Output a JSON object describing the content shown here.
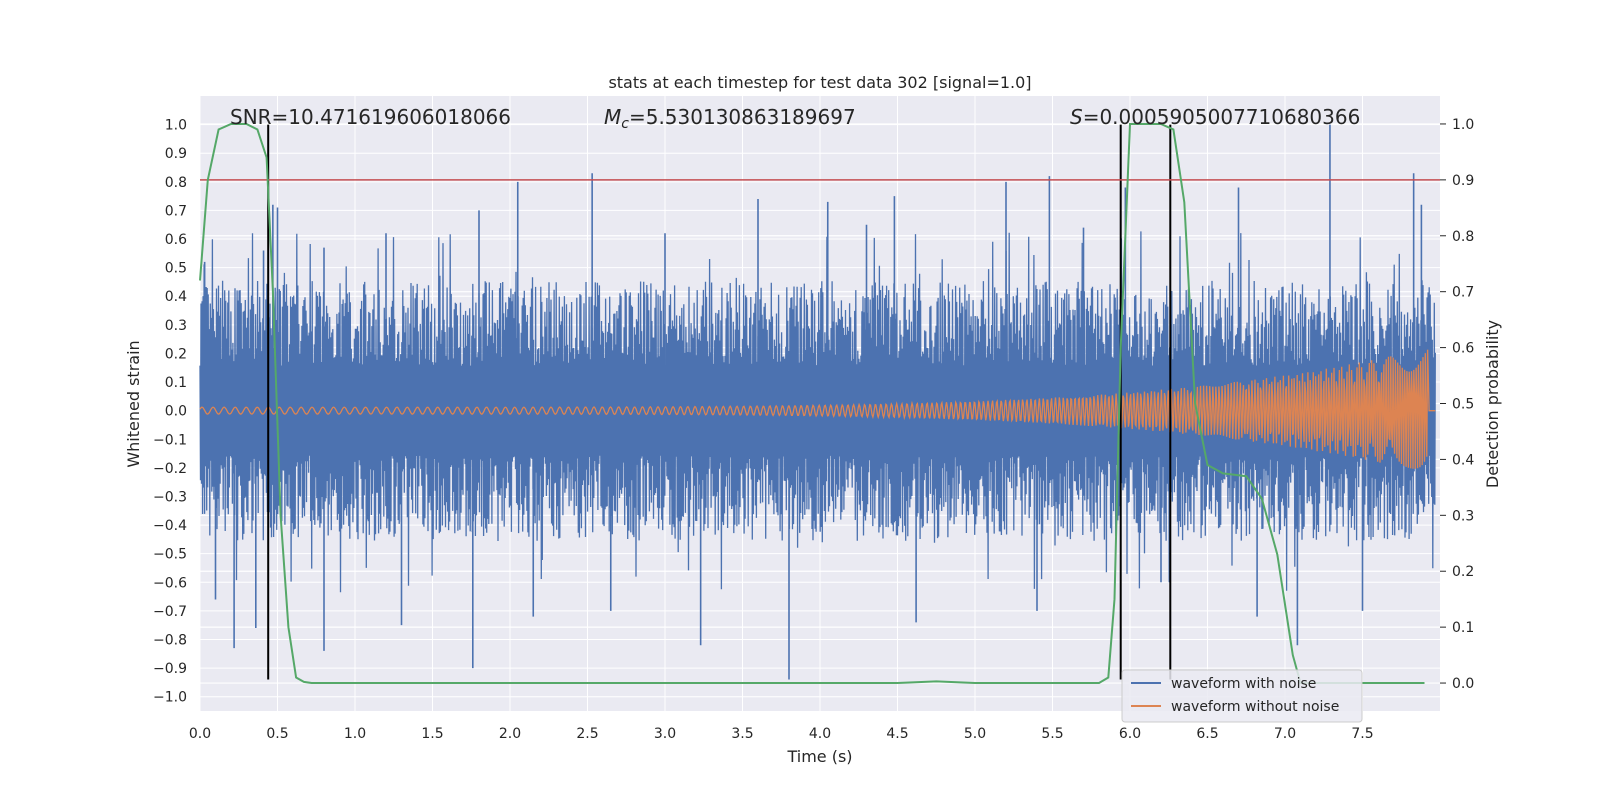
{
  "chart_data": {
    "type": "line",
    "title": "stats at each timestep for test data 302 [signal=1.0]",
    "xlabel": "Time (s)",
    "ylabel": "Whitened strain",
    "ylabel_right": "Detection probability",
    "xlim": [
      0.0,
      8.0
    ],
    "ylim": [
      -1.05,
      1.1
    ],
    "ylim_right": [
      -0.05,
      1.05
    ],
    "xticks": [
      "0.0",
      "0.5",
      "1.0",
      "1.5",
      "2.0",
      "2.5",
      "3.0",
      "3.5",
      "4.0",
      "4.5",
      "5.0",
      "5.5",
      "6.0",
      "6.5",
      "7.0",
      "7.5"
    ],
    "yticks": [
      "1.0",
      "0.9",
      "0.8",
      "0.7",
      "0.6",
      "0.5",
      "0.4",
      "0.3",
      "0.2",
      "0.1",
      "0.0",
      "−0.1",
      "−0.2",
      "−0.3",
      "−0.4",
      "−0.5",
      "−0.6",
      "−0.7",
      "−0.8",
      "−0.9",
      "−1.0"
    ],
    "yticks_right": [
      "1.0",
      "0.9",
      "0.8",
      "0.7",
      "0.6",
      "0.5",
      "0.4",
      "0.3",
      "0.2",
      "0.1",
      "0.0"
    ],
    "grid": true,
    "legend_placement": "lower-right",
    "annotations": {
      "snr": "SNR=10.471619606018066",
      "mc_symbol": "M",
      "mc_sub": "c",
      "mc_value": "=5.530130863189697",
      "s_symbol": "S",
      "s_value": "=0.0005905007710680366"
    },
    "series": [
      {
        "name": "waveform with noise",
        "color": "#4c72b0",
        "description_values": {
          "typical_envelope": 0.35,
          "peak_max": 1.0,
          "peak_min": -0.94
        }
      },
      {
        "name": "waveform without noise",
        "color": "#dd8452",
        "amplitude_start": 0.012,
        "amplitude_end": 0.22,
        "end_time": 7.92
      },
      {
        "name": "",
        "color": "#55a868",
        "axis": "right",
        "x": [
          0.0,
          0.05,
          0.12,
          0.2,
          0.3,
          0.37,
          0.43,
          0.47,
          0.52,
          0.57,
          0.62,
          0.67,
          0.72,
          1.0,
          2.0,
          3.0,
          4.0,
          4.5,
          4.75,
          5.0,
          5.5,
          5.8,
          5.86,
          5.9,
          5.94,
          6.0,
          6.1,
          6.2,
          6.28,
          6.35,
          6.42,
          6.5,
          6.6,
          6.75,
          6.85,
          6.95,
          7.05,
          7.1,
          7.3,
          7.5,
          7.9
        ],
        "y": [
          0.72,
          0.9,
          0.99,
          1.0,
          1.0,
          0.99,
          0.94,
          0.7,
          0.3,
          0.1,
          0.01,
          0.002,
          0.0,
          0.0,
          0.0,
          0.0,
          0.0,
          0.0,
          0.003,
          0.0,
          0.0,
          0.0,
          0.01,
          0.15,
          0.6,
          1.0,
          1.0,
          1.0,
          0.99,
          0.86,
          0.5,
          0.39,
          0.375,
          0.37,
          0.33,
          0.23,
          0.05,
          0.0,
          0.0,
          0.0,
          0.0
        ]
      },
      {
        "name": "",
        "color": "#c44e52",
        "axis": "right",
        "constant": 0.9
      }
    ],
    "vlines": [
      0.44,
      5.94,
      6.26
    ],
    "vline_color": "#000000",
    "noise_spikes": [
      {
        "x": 0.03,
        "y": 0.52
      },
      {
        "x": 0.1,
        "y": -0.66
      },
      {
        "x": 0.22,
        "y": -0.83
      },
      {
        "x": 0.36,
        "y": -0.76
      },
      {
        "x": 0.41,
        "y": 0.56
      },
      {
        "x": 0.47,
        "y": 0.72
      },
      {
        "x": 0.5,
        "y": 0.71
      },
      {
        "x": 0.8,
        "y": 0.57
      },
      {
        "x": 0.8,
        "y": -0.84
      },
      {
        "x": 1.2,
        "y": 0.62
      },
      {
        "x": 1.3,
        "y": -0.75
      },
      {
        "x": 1.76,
        "y": -0.9
      },
      {
        "x": 1.8,
        "y": 0.7
      },
      {
        "x": 2.05,
        "y": 0.8
      },
      {
        "x": 2.15,
        "y": -0.72
      },
      {
        "x": 2.53,
        "y": 0.83
      },
      {
        "x": 2.65,
        "y": -0.7
      },
      {
        "x": 3.0,
        "y": 0.62
      },
      {
        "x": 3.23,
        "y": -0.82
      },
      {
        "x": 3.6,
        "y": 0.74
      },
      {
        "x": 3.8,
        "y": -0.94
      },
      {
        "x": 4.05,
        "y": 0.73
      },
      {
        "x": 4.3,
        "y": 0.65
      },
      {
        "x": 4.48,
        "y": 0.75
      },
      {
        "x": 4.62,
        "y": -0.74
      },
      {
        "x": 5.2,
        "y": 0.8
      },
      {
        "x": 5.4,
        "y": -0.7
      },
      {
        "x": 5.48,
        "y": 0.82
      },
      {
        "x": 5.7,
        "y": 0.64
      },
      {
        "x": 5.97,
        "y": 0.78
      },
      {
        "x": 6.2,
        "y": -0.6
      },
      {
        "x": 6.7,
        "y": 0.78
      },
      {
        "x": 6.82,
        "y": -0.72
      },
      {
        "x": 7.08,
        "y": -0.82
      },
      {
        "x": 7.29,
        "y": 1.0
      },
      {
        "x": 7.5,
        "y": -0.7
      },
      {
        "x": 7.83,
        "y": 0.83
      },
      {
        "x": 7.88,
        "y": 0.72
      }
    ]
  }
}
